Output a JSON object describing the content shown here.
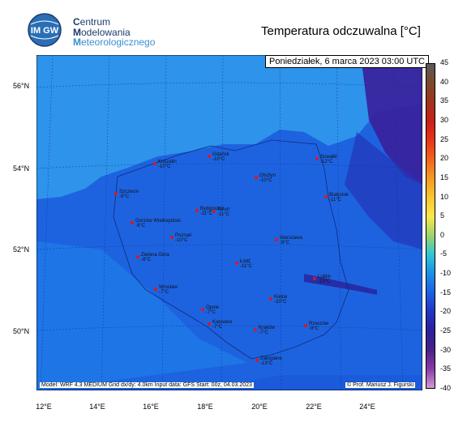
{
  "logo": {
    "badge_text": "IM GW",
    "line1_initial": "C",
    "line1_rest": "entrum",
    "line2_initial": "M",
    "line2_rest": "odelowania",
    "line3_initial": "M",
    "line3_rest": "eteorologicznego"
  },
  "title": "Temperatura odczuwalna [°C]",
  "timestamp": "Poniedziałek, 6 marca 2023 03:00 UTC",
  "footer_left": "Model: WRF 4.3 MEDIUM   Grid dx/dy: 4.0km   Input data: GFS   Start: 00z, 04.03.2023",
  "footer_right": "© Prof. Mariusz J. Figurski",
  "lat_labels": [
    "56°N",
    "54°N",
    "52°N",
    "50°N"
  ],
  "lon_labels": [
    "12°E",
    "14°E",
    "16°E",
    "18°E",
    "20°E",
    "22°E",
    "24°E"
  ],
  "colorbar": {
    "labels": [
      "45",
      "40",
      "35",
      "30",
      "25",
      "20",
      "15",
      "10",
      "5",
      "0",
      "-5",
      "-10",
      "-15",
      "-20",
      "-25",
      "-30",
      "-35",
      "-40"
    ],
    "colors": [
      "#5a5a5a",
      "#7a4a2a",
      "#a0331d",
      "#c8201b",
      "#e8331c",
      "#f0641c",
      "#f59a23",
      "#f8c62e",
      "#f9e94a",
      "#9fd36b",
      "#2fc6d3",
      "#1a8ee8",
      "#1d5fe3",
      "#2035c4",
      "#2a1f9a",
      "#4a1f8a",
      "#8a3aa5",
      "#d29ad2"
    ]
  },
  "cities": [
    {
      "name": "Gdańsk",
      "temp": "-10°C"
    },
    {
      "name": "Koszalin",
      "temp": "-10°C"
    },
    {
      "name": "Suwałki",
      "temp": "-12°C"
    },
    {
      "name": "Olsztyn",
      "temp": "-10°C"
    },
    {
      "name": "Szczecin",
      "temp": "-9°C"
    },
    {
      "name": "Białystok",
      "temp": "-11°C"
    },
    {
      "name": "Bydgoszcz",
      "temp": "-11°C"
    },
    {
      "name": "Toruń",
      "temp": "-11°C"
    },
    {
      "name": "Gorzów Wielkopolski",
      "temp": "-9°C"
    },
    {
      "name": "Poznań",
      "temp": "-10°C"
    },
    {
      "name": "Warszawa",
      "temp": "-9°C"
    },
    {
      "name": "Zielona Góra",
      "temp": "-8°C"
    },
    {
      "name": "Łódź",
      "temp": "-11°C"
    },
    {
      "name": "Lublin",
      "temp": "-13°C"
    },
    {
      "name": "Wrocław",
      "temp": "-7°C"
    },
    {
      "name": "Opole",
      "temp": "-7°C"
    },
    {
      "name": "Kielce",
      "temp": "-10°C"
    },
    {
      "name": "Katowice",
      "temp": "-7°C"
    },
    {
      "name": "Kraków",
      "temp": "-7°C"
    },
    {
      "name": "Rzeszów",
      "temp": "-9°C"
    },
    {
      "name": "Zakopane",
      "temp": "-13°C"
    }
  ],
  "colors": {
    "sea": "#2c8fe8",
    "land": "#1d63e0",
    "cold": "#1f3fc8",
    "east": "#3a1f9a",
    "marker": "#e0161b"
  }
}
